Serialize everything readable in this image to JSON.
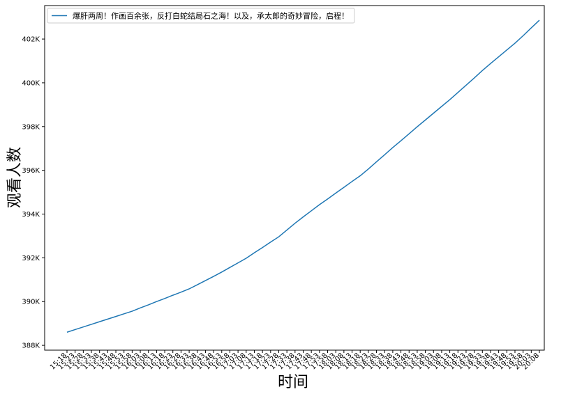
{
  "chart_data": {
    "type": "line",
    "xlabel": "时间",
    "ylabel": "观看人数",
    "categories": [
      "15:18",
      "15:23",
      "15:28",
      "15:33",
      "15:38",
      "15:43",
      "15:48",
      "15:53",
      "15:58",
      "16:03",
      "16:08",
      "16:13",
      "16:18",
      "16:23",
      "16:28",
      "16:33",
      "16:38",
      "16:43",
      "16:48",
      "16:53",
      "16:58",
      "17:03",
      "17:08",
      "17:13",
      "17:18",
      "17:23",
      "17:28",
      "17:33",
      "17:38",
      "17:43",
      "17:48",
      "17:53",
      "17:58",
      "18:03",
      "18:08",
      "18:13",
      "18:18",
      "18:23",
      "18:28",
      "18:33",
      "18:38",
      "18:43",
      "18:48",
      "18:53",
      "18:58",
      "19:03",
      "19:08",
      "19:13",
      "19:18",
      "19:23",
      "19:28",
      "19:33",
      "19:38",
      "19:43",
      "19:48",
      "19:53",
      "19:58",
      "20:03",
      "20:08"
    ],
    "series": [
      {
        "name": "爆肝两周！作画百余张，反打白蛇结局石之海！以及，承太郎的奇妙冒险，启程！",
        "color": "#1f77b4",
        "values": [
          388600,
          388720,
          388840,
          388960,
          389080,
          389200,
          389320,
          389440,
          389560,
          389710,
          389850,
          390000,
          390140,
          390290,
          390430,
          390580,
          390770,
          390960,
          391150,
          391350,
          391560,
          391770,
          391980,
          392230,
          392470,
          392720,
          392960,
          393270,
          393580,
          393870,
          394150,
          394430,
          394690,
          394960,
          395220,
          395490,
          395750,
          396060,
          396390,
          396710,
          397040,
          397350,
          397670,
          397990,
          398300,
          398610,
          398920,
          399230,
          399560,
          399890,
          400220,
          400560,
          400880,
          401190,
          401500,
          401810,
          402150,
          402510,
          402860
        ]
      }
    ],
    "ylim": [
      387780,
      403530
    ],
    "yticks": [
      {
        "value": 388000,
        "label": "388K"
      },
      {
        "value": 390000,
        "label": "390K"
      },
      {
        "value": 392000,
        "label": "392K"
      },
      {
        "value": 394000,
        "label": "394K"
      },
      {
        "value": 396000,
        "label": "396K"
      },
      {
        "value": 398000,
        "label": "398K"
      },
      {
        "value": 400000,
        "label": "400K"
      },
      {
        "value": 402000,
        "label": "402K"
      }
    ],
    "legend": "upper left"
  }
}
